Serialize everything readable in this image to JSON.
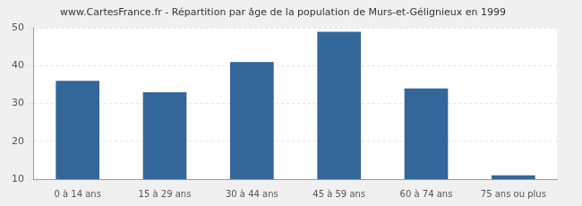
{
  "chart_data": {
    "type": "bar",
    "title": "www.CartesFrance.fr - Répartition par âge de la population de Murs-et-Gélignieux en 1999",
    "categories": [
      "0 à 14 ans",
      "15 à 29 ans",
      "30 à 44 ans",
      "45 à 59 ans",
      "60 à 74 ans",
      "75 ans ou plus"
    ],
    "values": [
      36,
      33,
      41,
      49,
      34,
      11
    ],
    "color": "#336699",
    "ylim": [
      10,
      50
    ],
    "yticks": [
      10,
      20,
      30,
      40,
      50
    ],
    "grid": true
  }
}
